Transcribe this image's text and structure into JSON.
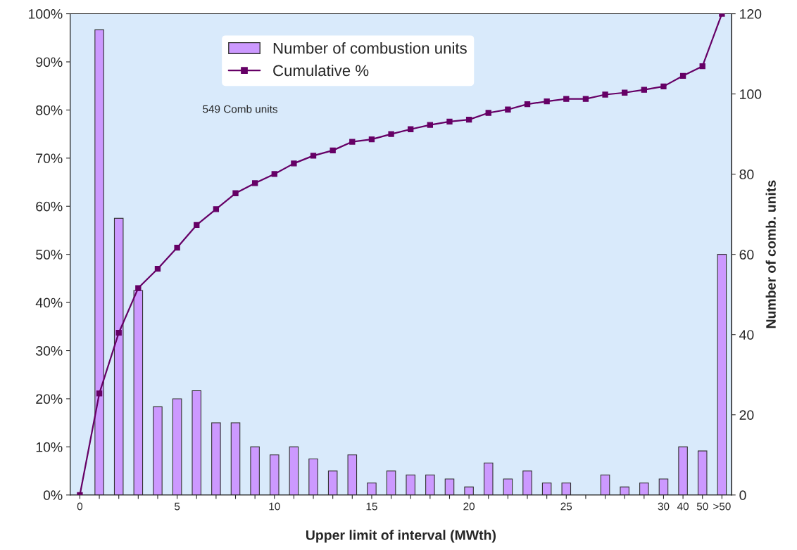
{
  "chart_data": {
    "type": "bar",
    "xlabel": "Upper limit of interval (MWth)",
    "y2label": "Number of comb. units",
    "categories": [
      "0",
      null,
      null,
      null,
      null,
      "5",
      null,
      null,
      null,
      null,
      "10",
      null,
      null,
      null,
      null,
      "15",
      null,
      null,
      null,
      null,
      "20",
      null,
      null,
      null,
      null,
      "25",
      null,
      null,
      null,
      null,
      "30",
      "40",
      "50",
      ">50"
    ],
    "series": [
      {
        "name": "Number of combustion units",
        "axis": "y2",
        "color": "#cc99ff",
        "values": [
          null,
          116,
          69,
          51,
          22,
          24,
          26,
          18,
          18,
          12,
          10,
          12,
          9,
          6,
          10,
          3,
          6,
          5,
          5,
          4,
          2,
          8,
          4,
          6,
          3,
          3,
          0,
          5,
          2,
          3,
          4,
          12,
          11,
          60
        ]
      },
      {
        "name": "Cumulative %",
        "type": "line",
        "axis": "y",
        "color": "#660066",
        "marker": "square",
        "values": [
          0,
          21.1,
          33.7,
          43.0,
          47.0,
          51.4,
          56.1,
          59.4,
          62.7,
          64.8,
          66.7,
          68.9,
          70.5,
          71.6,
          73.4,
          73.9,
          75.0,
          76.0,
          76.9,
          77.6,
          78.0,
          79.4,
          80.1,
          81.2,
          81.8,
          82.3,
          82.3,
          83.2,
          83.6,
          84.2,
          84.9,
          87.1,
          89.1,
          100
        ]
      }
    ],
    "ylim": [
      0,
      100
    ],
    "yticks": [
      {
        "value": 0,
        "label": "0%"
      },
      {
        "value": 10,
        "label": "10%"
      },
      {
        "value": 20,
        "label": "20%"
      },
      {
        "value": 30,
        "label": "30%"
      },
      {
        "value": 40,
        "label": "40%"
      },
      {
        "value": 50,
        "label": "50%"
      },
      {
        "value": 60,
        "label": "60%"
      },
      {
        "value": 70,
        "label": "70%"
      },
      {
        "value": 80,
        "label": "80%"
      },
      {
        "value": 90,
        "label": "90%"
      },
      {
        "value": 100,
        "label": "100%"
      }
    ],
    "y2lim": [
      0,
      120
    ],
    "y2ticks": [
      0,
      20,
      40,
      60,
      80,
      100,
      120
    ],
    "annotations": [
      "549 Comb units"
    ],
    "legend": "top",
    "grid": false
  }
}
